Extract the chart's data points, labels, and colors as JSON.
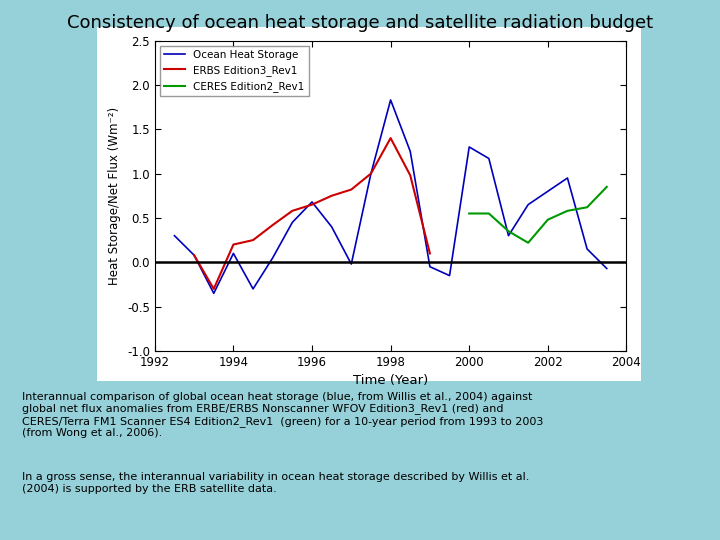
{
  "title": "Consistency of ocean heat storage and satellite radiation budget",
  "bg_color": "#96d0d8",
  "plot_bg_color": "#ffffff",
  "xlabel": "Time (Year)",
  "ylabel": "Heat Storage/Net Flux (Wm⁻²)",
  "xlim": [
    1992,
    2004
  ],
  "ylim": [
    -1.0,
    2.5
  ],
  "yticks": [
    -1.0,
    -0.5,
    0.0,
    0.5,
    1.0,
    1.5,
    2.0,
    2.5
  ],
  "xticks": [
    1992,
    1994,
    1996,
    1998,
    2000,
    2002,
    2004
  ],
  "legend_labels": [
    "Ocean Heat Storage",
    "ERBS Edition3_Rev1",
    "CERES Edition2_Rev1"
  ],
  "legend_colors": [
    "#0000bb",
    "#cc0000",
    "#009900"
  ],
  "caption1_parts": [
    [
      "Interannual comparison of global ocean heat storage (blue, from Willis ",
      false
    ],
    [
      "et al.",
      true
    ],
    [
      ", 2004) against",
      false
    ],
    [
      "\nglobal net flux anomalies from ERBE/ERBS Nonscanner WFOV Edition3_Rev1 (red) and",
      false
    ],
    [
      "\nCERES/Terra FM1 Scanner ES4 Edition2_Rev1  (green) for a 10-year period from 1993 to 2003",
      false
    ],
    [
      "\n(from Wong ",
      false
    ],
    [
      "et al.",
      true
    ],
    [
      ", 2006).",
      false
    ]
  ],
  "caption2_parts": [
    [
      "In a gross sense, the interannual variability in ocean heat storage described by Willis ",
      false
    ],
    [
      "et al.",
      true
    ],
    [
      "\n(2004) is supported by the ERB satellite data.",
      false
    ]
  ],
  "blue_x": [
    1992.5,
    1993.0,
    1993.5,
    1994.0,
    1994.5,
    1995.0,
    1995.5,
    1996.0,
    1996.5,
    1997.0,
    1997.5,
    1998.0,
    1998.5,
    1999.0,
    1999.5,
    2000.0,
    2000.5,
    2001.0,
    2001.5,
    2002.0,
    2002.5,
    2003.0,
    2003.5
  ],
  "blue_y": [
    0.3,
    0.08,
    -0.35,
    0.1,
    -0.3,
    0.05,
    0.45,
    0.68,
    0.4,
    -0.02,
    1.0,
    1.83,
    1.25,
    -0.05,
    -0.15,
    1.3,
    1.17,
    0.3,
    0.65,
    0.8,
    0.95,
    0.15,
    -0.07
  ],
  "red_x": [
    1993.0,
    1993.5,
    1994.0,
    1994.5,
    1995.0,
    1995.5,
    1996.0,
    1996.5,
    1997.0,
    1997.5,
    1998.0,
    1998.5,
    1999.0
  ],
  "red_y": [
    0.08,
    -0.3,
    0.2,
    0.25,
    0.42,
    0.58,
    0.65,
    0.75,
    0.82,
    1.0,
    1.4,
    0.98,
    0.1
  ],
  "green_x": [
    2000.0,
    2000.5,
    2001.0,
    2001.5,
    2002.0,
    2002.5,
    2003.0,
    2003.5
  ],
  "green_y": [
    0.55,
    0.55,
    0.35,
    0.22,
    0.48,
    0.58,
    0.62,
    0.85
  ]
}
